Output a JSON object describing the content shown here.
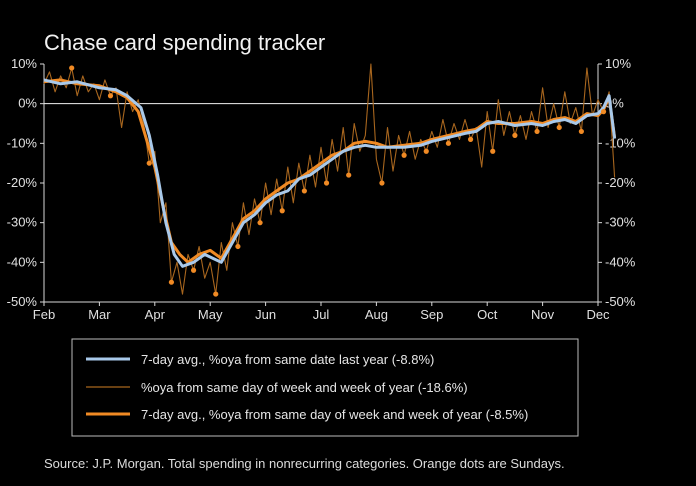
{
  "chart_data": {
    "type": "line",
    "title": "Chase card spending tracker",
    "xlabel": "",
    "ylabel": "",
    "ylim": [
      -50,
      10
    ],
    "yticks": [
      10,
      0,
      -10,
      -20,
      -30,
      -40,
      -50
    ],
    "ytick_labels": [
      "10%",
      "0%",
      "-10%",
      "-20%",
      "-30%",
      "-40%",
      "-50%"
    ],
    "months": [
      "Feb",
      "Mar",
      "Apr",
      "May",
      "Jun",
      "Jul",
      "Aug",
      "Sep",
      "Oct",
      "Nov",
      "Dec"
    ],
    "grid": false,
    "zero_line": true,
    "series": [
      {
        "name": "7-day avg., %oya from same date last year (-8.8%)",
        "color": "#a9c9ea",
        "points": [
          [
            0,
            6
          ],
          [
            0.3,
            5
          ],
          [
            0.6,
            5.5
          ],
          [
            1.0,
            4
          ],
          [
            1.3,
            3.5
          ],
          [
            1.5,
            2
          ],
          [
            1.75,
            -1
          ],
          [
            1.9,
            -8
          ],
          [
            2.05,
            -18
          ],
          [
            2.2,
            -30
          ],
          [
            2.35,
            -38
          ],
          [
            2.5,
            -41
          ],
          [
            2.7,
            -40
          ],
          [
            2.9,
            -38
          ],
          [
            3.05,
            -39
          ],
          [
            3.2,
            -40
          ],
          [
            3.4,
            -35
          ],
          [
            3.6,
            -30
          ],
          [
            3.8,
            -28
          ],
          [
            4.0,
            -25
          ],
          [
            4.2,
            -23
          ],
          [
            4.4,
            -22
          ],
          [
            4.6,
            -19
          ],
          [
            4.8,
            -18
          ],
          [
            5.0,
            -16
          ],
          [
            5.2,
            -14
          ],
          [
            5.4,
            -12
          ],
          [
            5.6,
            -11
          ],
          [
            5.8,
            -10.5
          ],
          [
            6.0,
            -11
          ],
          [
            6.2,
            -11
          ],
          [
            6.5,
            -11
          ],
          [
            6.8,
            -10.5
          ],
          [
            7.0,
            -9.5
          ],
          [
            7.3,
            -8.5
          ],
          [
            7.6,
            -7.5
          ],
          [
            7.8,
            -7
          ],
          [
            8.0,
            -5
          ],
          [
            8.2,
            -4.5
          ],
          [
            8.5,
            -5.5
          ],
          [
            8.8,
            -5
          ],
          [
            9.0,
            -5.5
          ],
          [
            9.2,
            -4.5
          ],
          [
            9.4,
            -4
          ],
          [
            9.6,
            -5
          ],
          [
            9.8,
            -3
          ],
          [
            10.0,
            -2.5
          ],
          [
            10.1,
            -1
          ],
          [
            10.2,
            2
          ],
          [
            10.3,
            -8.8
          ]
        ]
      },
      {
        "name": "%oya from same day of week and week of year (-18.6%)",
        "color": "#a8661e",
        "points": [
          [
            0,
            5
          ],
          [
            0.1,
            8
          ],
          [
            0.2,
            3
          ],
          [
            0.3,
            7
          ],
          [
            0.4,
            4
          ],
          [
            0.5,
            9
          ],
          [
            0.6,
            2
          ],
          [
            0.7,
            7
          ],
          [
            0.8,
            3
          ],
          [
            0.9,
            5
          ],
          [
            1.0,
            1
          ],
          [
            1.1,
            6
          ],
          [
            1.2,
            2
          ],
          [
            1.3,
            4
          ],
          [
            1.4,
            -6
          ],
          [
            1.5,
            3
          ],
          [
            1.6,
            -2
          ],
          [
            1.7,
            1
          ],
          [
            1.8,
            -5
          ],
          [
            1.9,
            -15
          ],
          [
            2.0,
            -12
          ],
          [
            2.1,
            -30
          ],
          [
            2.2,
            -25
          ],
          [
            2.3,
            -45
          ],
          [
            2.4,
            -40
          ],
          [
            2.5,
            -48
          ],
          [
            2.6,
            -38
          ],
          [
            2.7,
            -42
          ],
          [
            2.8,
            -36
          ],
          [
            2.9,
            -44
          ],
          [
            3.0,
            -40
          ],
          [
            3.1,
            -48
          ],
          [
            3.2,
            -35
          ],
          [
            3.3,
            -42
          ],
          [
            3.4,
            -30
          ],
          [
            3.5,
            -36
          ],
          [
            3.6,
            -25
          ],
          [
            3.7,
            -33
          ],
          [
            3.8,
            -24
          ],
          [
            3.9,
            -30
          ],
          [
            4.0,
            -20
          ],
          [
            4.1,
            -28
          ],
          [
            4.2,
            -19
          ],
          [
            4.3,
            -27
          ],
          [
            4.4,
            -16
          ],
          [
            4.5,
            -25
          ],
          [
            4.6,
            -15
          ],
          [
            4.7,
            -22
          ],
          [
            4.8,
            -13
          ],
          [
            4.9,
            -21
          ],
          [
            5.0,
            -11
          ],
          [
            5.1,
            -20
          ],
          [
            5.2,
            -9
          ],
          [
            5.3,
            -17
          ],
          [
            5.4,
            -6
          ],
          [
            5.5,
            -18
          ],
          [
            5.6,
            -5
          ],
          [
            5.7,
            -12
          ],
          [
            5.8,
            -8
          ],
          [
            5.9,
            10
          ],
          [
            6.0,
            -14
          ],
          [
            6.1,
            -20
          ],
          [
            6.2,
            -6
          ],
          [
            6.3,
            -17
          ],
          [
            6.4,
            -8
          ],
          [
            6.5,
            -13
          ],
          [
            6.6,
            -7
          ],
          [
            6.7,
            -14
          ],
          [
            6.8,
            -9
          ],
          [
            6.9,
            -12
          ],
          [
            7.0,
            -7
          ],
          [
            7.1,
            -11
          ],
          [
            7.2,
            -4
          ],
          [
            7.3,
            -10
          ],
          [
            7.4,
            -5
          ],
          [
            7.5,
            -9
          ],
          [
            7.6,
            -4
          ],
          [
            7.7,
            -9
          ],
          [
            7.8,
            -6
          ],
          [
            7.9,
            -16
          ],
          [
            8.0,
            -2
          ],
          [
            8.1,
            -12
          ],
          [
            8.2,
            1
          ],
          [
            8.3,
            -8
          ],
          [
            8.4,
            -2
          ],
          [
            8.5,
            -8
          ],
          [
            8.6,
            -3
          ],
          [
            8.7,
            -9
          ],
          [
            8.8,
            -2
          ],
          [
            8.9,
            -7
          ],
          [
            9.0,
            4
          ],
          [
            9.1,
            -6
          ],
          [
            9.2,
            0
          ],
          [
            9.3,
            -6
          ],
          [
            9.4,
            3
          ],
          [
            9.5,
            -5
          ],
          [
            9.6,
            -1
          ],
          [
            9.7,
            -7
          ],
          [
            9.8,
            9
          ],
          [
            9.9,
            -3
          ],
          [
            10.0,
            1
          ],
          [
            10.1,
            -2
          ],
          [
            10.2,
            3
          ],
          [
            10.3,
            -18.6
          ]
        ]
      },
      {
        "name": "7-day avg., %oya from same day of week and week of year (-8.5%)",
        "color": "#f08a24",
        "points": [
          [
            0,
            5.5
          ],
          [
            0.3,
            6
          ],
          [
            0.6,
            5
          ],
          [
            1.0,
            4.5
          ],
          [
            1.3,
            3
          ],
          [
            1.5,
            1.5
          ],
          [
            1.7,
            -2
          ],
          [
            1.85,
            -9
          ],
          [
            2.0,
            -16
          ],
          [
            2.15,
            -26
          ],
          [
            2.3,
            -35
          ],
          [
            2.45,
            -38
          ],
          [
            2.6,
            -40
          ],
          [
            2.8,
            -38
          ],
          [
            3.0,
            -37
          ],
          [
            3.2,
            -39
          ],
          [
            3.4,
            -34
          ],
          [
            3.6,
            -29
          ],
          [
            3.8,
            -27
          ],
          [
            4.0,
            -24
          ],
          [
            4.2,
            -22
          ],
          [
            4.4,
            -20
          ],
          [
            4.6,
            -19
          ],
          [
            4.8,
            -17
          ],
          [
            5.0,
            -15
          ],
          [
            5.2,
            -13
          ],
          [
            5.4,
            -12
          ],
          [
            5.6,
            -10
          ],
          [
            5.8,
            -9.5
          ],
          [
            6.0,
            -10
          ],
          [
            6.2,
            -11
          ],
          [
            6.5,
            -10.5
          ],
          [
            6.8,
            -10
          ],
          [
            7.0,
            -9
          ],
          [
            7.3,
            -8
          ],
          [
            7.6,
            -7
          ],
          [
            7.8,
            -6.5
          ],
          [
            8.0,
            -4.5
          ],
          [
            8.2,
            -5
          ],
          [
            8.5,
            -5
          ],
          [
            8.8,
            -4.5
          ],
          [
            9.0,
            -5
          ],
          [
            9.2,
            -4
          ],
          [
            9.4,
            -3.5
          ],
          [
            9.6,
            -4.5
          ],
          [
            9.8,
            -2.5
          ],
          [
            10.0,
            -3
          ],
          [
            10.1,
            -1.5
          ],
          [
            10.2,
            1.5
          ],
          [
            10.3,
            -8.5
          ]
        ]
      }
    ],
    "sunday_markers": {
      "name": "Orange dots are Sundays",
      "color": "#f08a24",
      "points": [
        [
          0.5,
          9
        ],
        [
          1.2,
          2
        ],
        [
          1.9,
          -15
        ],
        [
          2.3,
          -45
        ],
        [
          2.7,
          -42
        ],
        [
          3.1,
          -48
        ],
        [
          3.5,
          -36
        ],
        [
          3.9,
          -30
        ],
        [
          4.3,
          -27
        ],
        [
          4.7,
          -22
        ],
        [
          5.1,
          -20
        ],
        [
          5.5,
          -18
        ],
        [
          6.1,
          -20
        ],
        [
          6.5,
          -13
        ],
        [
          6.9,
          -12
        ],
        [
          7.3,
          -10
        ],
        [
          7.7,
          -9
        ],
        [
          8.1,
          -12
        ],
        [
          8.5,
          -8
        ],
        [
          8.9,
          -7
        ],
        [
          9.3,
          -6
        ],
        [
          9.7,
          -7
        ],
        [
          10.1,
          -2
        ]
      ]
    },
    "legend": {
      "placement": "bottom",
      "entries": [
        "7-day avg., %oya from same date last year (-8.8%)",
        "%oya from same day of week and week of year (-18.6%)",
        "7-day avg., %oya from same day of week and week of year (-8.5%)"
      ]
    },
    "source": "Source: J.P. Morgan. Total spending in nonrecurring categories. Orange dots are Sundays."
  },
  "colors": {
    "background": "#000000",
    "axis": "#d8d8d8",
    "text": "#e6e6e6"
  }
}
